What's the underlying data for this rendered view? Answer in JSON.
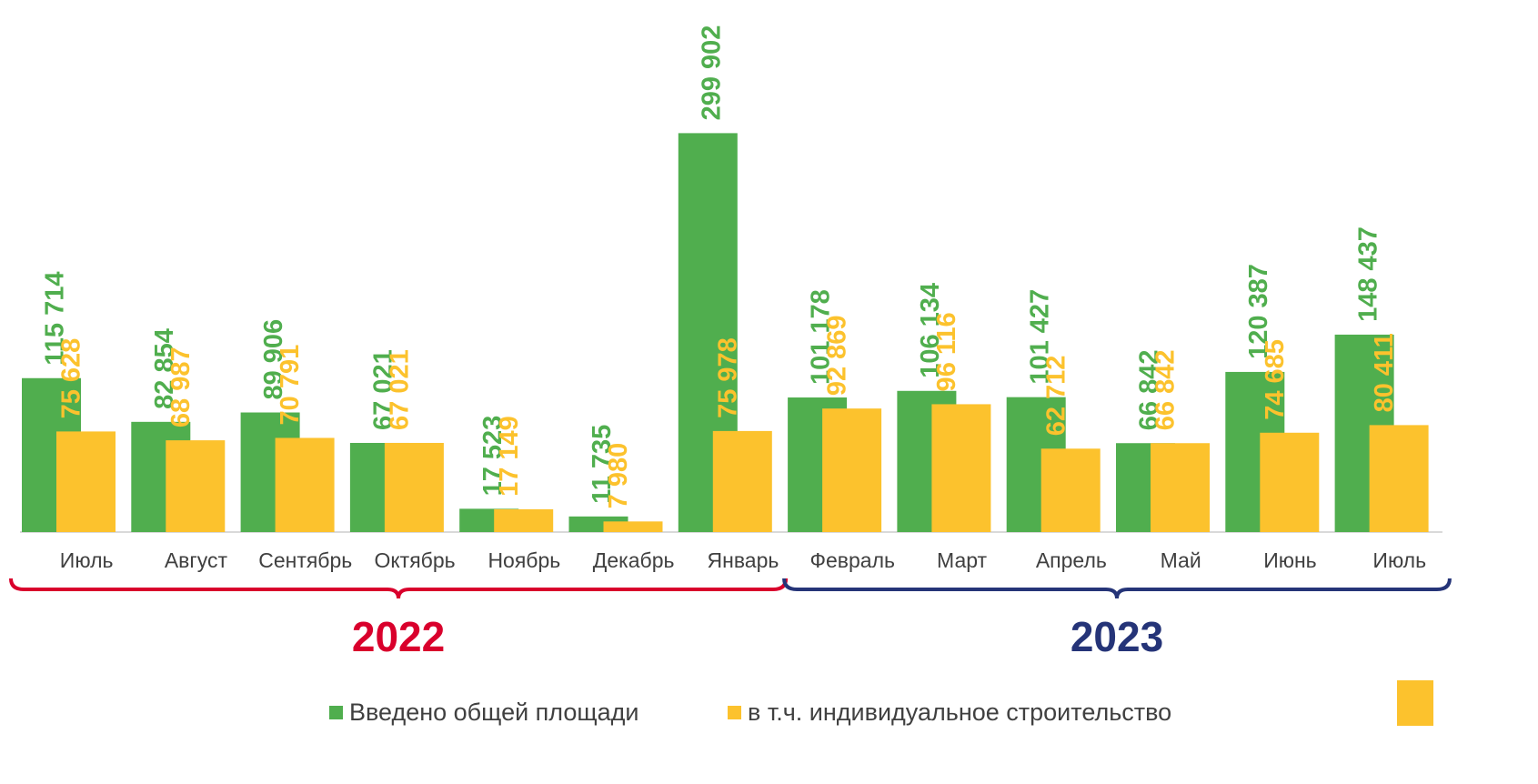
{
  "chart_data": {
    "type": "bar",
    "categories": [
      "Июль",
      "Август",
      "Сентябрь",
      "Октябрь",
      "Ноябрь",
      "Декабрь",
      "Январь",
      "Февраль",
      "Март",
      "Апрель",
      "Май",
      "Июнь",
      "Июль"
    ],
    "series": [
      {
        "name": "Введено общей площади",
        "color": "#50ae4e",
        "values": [
          115714,
          82854,
          89906,
          67021,
          17523,
          11735,
          299902,
          101178,
          106134,
          101427,
          66842,
          120387,
          148437
        ],
        "value_labels": [
          "115 714",
          "82 854",
          "89 906",
          "67 021",
          "17 523",
          "11 735",
          "299 902",
          "101 178",
          "106 134",
          "101 427",
          "66 842",
          "120 387",
          "148 437"
        ]
      },
      {
        "name": "в т.ч. индивидуальное строительство",
        "color": "#fcc22d",
        "values": [
          75628,
          68987,
          70791,
          67021,
          17149,
          7980,
          75978,
          92869,
          96116,
          62712,
          66842,
          74685,
          80411
        ],
        "value_labels": [
          "75 628",
          "68 987",
          "70 791",
          "67 021",
          "17 149",
          "7 980",
          "75 978",
          "92 869",
          "96 116",
          "62 712",
          "66 842",
          "74 685",
          "80 411"
        ]
      }
    ],
    "year_groups": [
      {
        "label": "2022",
        "color": "#d9002c"
      },
      {
        "label": "2023",
        "color": "#253478"
      }
    ],
    "ylim": [
      0,
      400000
    ]
  }
}
